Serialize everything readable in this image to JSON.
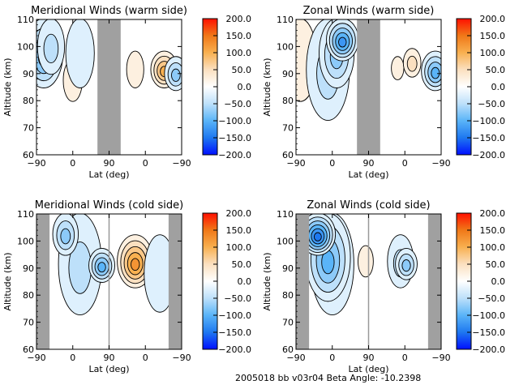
{
  "footer": "2005018 bb v03r04   Beta Angle: -10.2398",
  "colors": {
    "gap": "#a0a0a0",
    "frame": "#000000",
    "colormap": [
      "#0010ff",
      "#1e78f0",
      "#5ab4f8",
      "#bde0fa",
      "#ffffff",
      "#fbe0c0",
      "#f8b050",
      "#f07818",
      "#ff1000"
    ]
  },
  "colorbar": {
    "min": -200.0,
    "max": 200.0,
    "ticks": [
      "200.0",
      "150.0",
      "100.0",
      "50.0",
      "0.0",
      "-50.0",
      "-100.0",
      "-150.0",
      "-200.0"
    ]
  },
  "chart_data": [
    {
      "type": "heatmap",
      "id": "merid-warm",
      "title": "Meridional Winds (warm side)",
      "xlabel": "Lat (deg)",
      "ylabel": "Altitude (km)",
      "xticks": [
        "-90",
        "0",
        "90",
        "0",
        "-90"
      ],
      "yticks": [
        "110",
        "100",
        "90",
        "80",
        "70",
        "60"
      ],
      "ylim": [
        60,
        110
      ],
      "gap_region_lat_track": [
        0.42,
        0.58
      ],
      "features": [
        {
          "lat_pos": 0.05,
          "alt": [
            85,
            110
          ],
          "value": -80
        },
        {
          "lat_pos": 0.1,
          "alt": [
            90,
            110
          ],
          "value": -40
        },
        {
          "lat_pos": 0.25,
          "alt": [
            80,
            95
          ],
          "value": 15
        },
        {
          "lat_pos": 0.3,
          "alt": [
            85,
            110
          ],
          "value": -25
        },
        {
          "lat_pos": 0.68,
          "alt": [
            85,
            98
          ],
          "value": 15
        },
        {
          "lat_pos": 0.88,
          "alt": [
            85,
            98
          ],
          "value": 90
        },
        {
          "lat_pos": 0.96,
          "alt": [
            84,
            96
          ],
          "value": -60
        }
      ]
    },
    {
      "type": "heatmap",
      "id": "zonal-warm",
      "title": "Zonal Winds (warm side)",
      "xlabel": "Lat (deg)",
      "ylabel": "Altitude (km)",
      "xticks": [
        "-90",
        "0",
        "90",
        "0",
        "-90"
      ],
      "yticks": [
        "110",
        "100",
        "90",
        "80",
        "70",
        "60"
      ],
      "ylim": [
        60,
        110
      ],
      "gap_region_lat_track": [
        0.42,
        0.58
      ],
      "features": [
        {
          "lat_pos": 0.03,
          "alt": [
            80,
            110
          ],
          "value": 15
        },
        {
          "lat_pos": 0.22,
          "alt": [
            73,
            110
          ],
          "value": -30
        },
        {
          "lat_pos": 0.28,
          "alt": [
            85,
            110
          ],
          "value": -70
        },
        {
          "lat_pos": 0.32,
          "alt": [
            95,
            110
          ],
          "value": -110
        },
        {
          "lat_pos": 0.7,
          "alt": [
            88,
            96
          ],
          "value": 15
        },
        {
          "lat_pos": 0.8,
          "alt": [
            89,
            99
          ],
          "value": 30
        },
        {
          "lat_pos": 0.96,
          "alt": [
            84,
            98
          ],
          "value": -90
        }
      ]
    },
    {
      "type": "heatmap",
      "id": "merid-cold",
      "title": "Meridional Winds (cold side)",
      "xlabel": "Lat (deg)",
      "ylabel": "Altitude (km)",
      "xticks": [
        "-90",
        "0",
        "90",
        "0",
        "-90"
      ],
      "yticks": [
        "110",
        "100",
        "90",
        "80",
        "70",
        "60"
      ],
      "ylim": [
        60,
        110
      ],
      "gap_region_lat_track": [
        [
          0.0,
          0.09
        ],
        [
          0.91,
          1.0
        ]
      ],
      "features": [
        {
          "lat_pos": 0.3,
          "alt": [
            73,
            110
          ],
          "value": -30
        },
        {
          "lat_pos": 0.2,
          "alt": [
            95,
            110
          ],
          "value": -70
        },
        {
          "lat_pos": 0.45,
          "alt": [
            85,
            97
          ],
          "value": -80
        },
        {
          "lat_pos": 0.68,
          "alt": [
            83,
            102
          ],
          "value": 110
        },
        {
          "lat_pos": 0.85,
          "alt": [
            74,
            102
          ],
          "value": -25
        }
      ]
    },
    {
      "type": "heatmap",
      "id": "zonal-cold",
      "title": "Zonal Winds (cold side)",
      "xlabel": "Lat (deg)",
      "ylabel": "Altitude (km)",
      "xticks": [
        "-90",
        "0",
        "90",
        "0",
        "-90"
      ],
      "yticks": [
        "110",
        "100",
        "90",
        "80",
        "70",
        "60"
      ],
      "ylim": [
        60,
        110
      ],
      "gap_region_lat_track": [
        [
          0.0,
          0.09
        ],
        [
          0.91,
          1.0
        ]
      ],
      "features": [
        {
          "lat_pos": 0.25,
          "alt": [
            73,
            110
          ],
          "value": -40
        },
        {
          "lat_pos": 0.22,
          "alt": [
            78,
            110
          ],
          "value": -90
        },
        {
          "lat_pos": 0.15,
          "alt": [
            95,
            110
          ],
          "value": -140
        },
        {
          "lat_pos": 0.48,
          "alt": [
            87,
            98
          ],
          "value": 15
        },
        {
          "lat_pos": 0.72,
          "alt": [
            83,
            102
          ],
          "value": -30
        },
        {
          "lat_pos": 0.76,
          "alt": [
            86,
            97
          ],
          "value": -65
        }
      ]
    }
  ]
}
